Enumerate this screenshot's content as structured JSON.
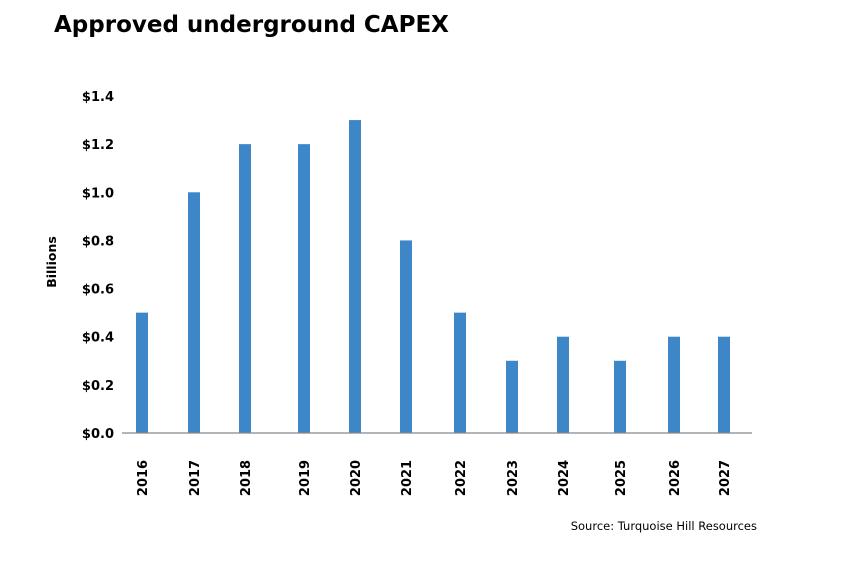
{
  "title": "Approved underground CAPEX",
  "source": "Source: Turquoise Hill Resources",
  "colors": {
    "bar": "#3d87c9",
    "axis": "#888888",
    "text": "#000000"
  },
  "chart_data": {
    "type": "bar",
    "title": "Approved underground CAPEX",
    "xlabel": "",
    "ylabel": "Billions",
    "ylim": [
      0,
      1.4
    ],
    "yticks": [
      "$0.0",
      "$0.2",
      "$0.4",
      "$0.6",
      "$0.8",
      "$1.0",
      "$1.2",
      "$1.4"
    ],
    "grid": false,
    "legend": "none",
    "categories": [
      "2016",
      "2017",
      "2018",
      "2019",
      "2020",
      "2021",
      "2022",
      "2023",
      "2024",
      "2025",
      "2026",
      "2027"
    ],
    "values": [
      0.5,
      1.0,
      1.2,
      1.2,
      1.3,
      0.8,
      0.5,
      0.3,
      0.4,
      0.3,
      0.4,
      0.4
    ]
  }
}
